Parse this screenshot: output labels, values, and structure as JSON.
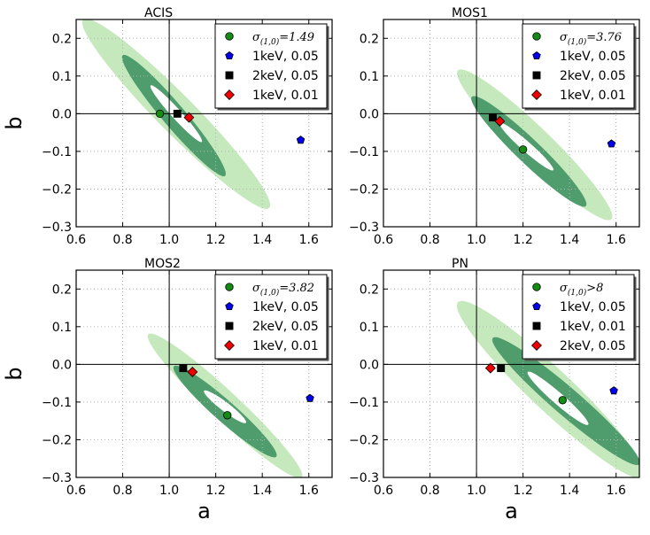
{
  "colors": {
    "ellipse_outer": "#c5e9bd",
    "ellipse_inner": "#4f9c6c",
    "ellipse_core": "#ffffff",
    "green": "#148c14",
    "blue": "#0000ee",
    "black": "#000000",
    "red": "#ee0000",
    "grid": "#b4b4b4"
  },
  "shared_axes": {
    "xlabel": "a",
    "ylabel": "b",
    "xlim": [
      0.6,
      1.7
    ],
    "ylim": [
      -0.3,
      0.25
    ],
    "xticks": [
      "0.6",
      "0.8",
      "1.0",
      "1.2",
      "1.4",
      "1.6"
    ],
    "yticks": [
      "0.2",
      "0.1",
      "0.0",
      "−0.1",
      "−0.2",
      "−0.3"
    ],
    "grid": true,
    "reference_lines": {
      "a": 1.0,
      "b": 0.0
    }
  },
  "chart_data": [
    {
      "type": "scatter",
      "title": "ACIS",
      "legend_position": "top-right",
      "legend": [
        {
          "marker": "circle",
          "color": "green",
          "sigma_prefix": "σ",
          "sigma_sub": "(1,0)",
          "sigma_rel": "=",
          "sigma_value": "1.49"
        },
        {
          "marker": "pentagon",
          "color": "blue",
          "label": "1keV, 0.05"
        },
        {
          "marker": "square",
          "color": "black",
          "label": "2keV, 0.05"
        },
        {
          "marker": "diamond",
          "color": "red",
          "label": "1keV, 0.01"
        }
      ],
      "points": [
        {
          "marker": "circle",
          "color": "green",
          "x": 0.96,
          "y": 0.0
        },
        {
          "marker": "pentagon",
          "color": "blue",
          "x": 1.565,
          "y": -0.07
        },
        {
          "marker": "square",
          "color": "black",
          "x": 1.035,
          "y": 0.0
        },
        {
          "marker": "diamond",
          "color": "red",
          "x": 1.085,
          "y": -0.01
        }
      ],
      "contours": [
        {
          "level": "outer",
          "cx": 1.03,
          "cy": 0.0,
          "a_start": 0.63,
          "b_start": 0.25,
          "a_end": 1.43,
          "b_end": -0.25,
          "half_width": 0.05
        },
        {
          "level": "inner",
          "cx": 1.03,
          "cy": 0.0,
          "a_start": 0.8,
          "b_start": 0.155,
          "a_end": 1.24,
          "b_end": -0.165,
          "half_width": 0.03
        },
        {
          "level": "core",
          "cx": 1.03,
          "cy": 0.0,
          "a_start": 0.92,
          "b_start": 0.075,
          "a_end": 1.14,
          "b_end": -0.075,
          "half_width": 0.013
        }
      ]
    },
    {
      "type": "scatter",
      "title": "MOS1",
      "legend_position": "top-right",
      "legend": [
        {
          "marker": "circle",
          "color": "green",
          "sigma_prefix": "σ",
          "sigma_sub": "(1,0)",
          "sigma_rel": "=",
          "sigma_value": "3.76"
        },
        {
          "marker": "pentagon",
          "color": "blue",
          "label": "1keV, 0.05"
        },
        {
          "marker": "square",
          "color": "black",
          "label": "2keV, 0.05"
        },
        {
          "marker": "diamond",
          "color": "red",
          "label": "1keV, 0.01"
        }
      ],
      "points": [
        {
          "marker": "circle",
          "color": "green",
          "x": 1.2,
          "y": -0.095
        },
        {
          "marker": "pentagon",
          "color": "blue",
          "x": 1.58,
          "y": -0.08
        },
        {
          "marker": "square",
          "color": "black",
          "x": 1.07,
          "y": -0.01
        },
        {
          "marker": "diamond",
          "color": "red",
          "x": 1.1,
          "y": -0.02
        }
      ],
      "contours": [
        {
          "level": "outer",
          "cx": 1.25,
          "cy": -0.08,
          "a_start": 0.92,
          "b_start": 0.115,
          "a_end": 1.58,
          "b_end": -0.28,
          "half_width": 0.045
        },
        {
          "level": "inner",
          "cx": 1.25,
          "cy": -0.08,
          "a_start": 0.98,
          "b_start": 0.045,
          "a_end": 1.47,
          "b_end": -0.245,
          "half_width": 0.032
        },
        {
          "level": "core",
          "cx": 1.25,
          "cy": -0.08,
          "a_start": 1.1,
          "b_start": -0.025,
          "a_end": 1.33,
          "b_end": -0.15,
          "half_width": 0.013
        }
      ]
    },
    {
      "type": "scatter",
      "title": "MOS2",
      "legend_position": "top-right",
      "legend": [
        {
          "marker": "circle",
          "color": "green",
          "sigma_prefix": "σ",
          "sigma_sub": "(1,0)",
          "sigma_rel": "=",
          "sigma_value": "3.82"
        },
        {
          "marker": "pentagon",
          "color": "blue",
          "label": "1keV, 0.05"
        },
        {
          "marker": "square",
          "color": "black",
          "label": "2keV, 0.05"
        },
        {
          "marker": "diamond",
          "color": "red",
          "label": "1keV, 0.01"
        }
      ],
      "points": [
        {
          "marker": "circle",
          "color": "green",
          "x": 1.25,
          "y": -0.135
        },
        {
          "marker": "pentagon",
          "color": "blue",
          "x": 1.605,
          "y": -0.09
        },
        {
          "marker": "square",
          "color": "black",
          "x": 1.06,
          "y": -0.01
        },
        {
          "marker": "diamond",
          "color": "red",
          "x": 1.1,
          "y": -0.02
        }
      ],
      "contours": [
        {
          "level": "outer",
          "cx": 1.24,
          "cy": -0.11,
          "a_start": 0.91,
          "b_start": 0.08,
          "a_end": 1.57,
          "b_end": -0.3,
          "half_width": 0.038
        },
        {
          "level": "inner",
          "cx": 1.24,
          "cy": -0.11,
          "a_start": 1.02,
          "b_start": -0.005,
          "a_end": 1.46,
          "b_end": -0.245,
          "half_width": 0.028
        },
        {
          "level": "core",
          "cx": 1.24,
          "cy": -0.11,
          "a_start": 1.15,
          "b_start": -0.07,
          "a_end": 1.33,
          "b_end": -0.155,
          "half_width": 0.012
        }
      ]
    },
    {
      "type": "scatter",
      "title": "PN",
      "legend_position": "top-right",
      "legend": [
        {
          "marker": "circle",
          "color": "green",
          "sigma_prefix": "σ",
          "sigma_sub": "(1,0)",
          "sigma_rel": ">",
          "sigma_value": "8"
        },
        {
          "marker": "pentagon",
          "color": "blue",
          "label": "1keV, 0.05"
        },
        {
          "marker": "square",
          "color": "black",
          "label": "1keV, 0.01"
        },
        {
          "marker": "diamond",
          "color": "red",
          "label": "2keV, 0.05"
        }
      ],
      "points": [
        {
          "marker": "circle",
          "color": "green",
          "x": 1.37,
          "y": -0.095
        },
        {
          "marker": "pentagon",
          "color": "blue",
          "x": 1.59,
          "y": -0.07
        },
        {
          "marker": "square",
          "color": "black",
          "x": 1.105,
          "y": -0.01
        },
        {
          "marker": "diamond",
          "color": "red",
          "x": 1.06,
          "y": -0.01
        }
      ],
      "contours": [
        {
          "level": "outer",
          "cx": 1.35,
          "cy": -0.1,
          "a_start": 0.92,
          "b_start": 0.165,
          "a_end": 1.72,
          "b_end": -0.3,
          "half_width": 0.055
        },
        {
          "level": "inner",
          "cx": 1.35,
          "cy": -0.1,
          "a_start": 1.07,
          "b_start": 0.07,
          "a_end": 1.7,
          "b_end": -0.265,
          "half_width": 0.036
        },
        {
          "level": "core",
          "cx": 1.35,
          "cy": -0.1,
          "a_start": 1.22,
          "b_start": -0.02,
          "a_end": 1.48,
          "b_end": -0.16,
          "half_width": 0.015
        }
      ]
    }
  ]
}
